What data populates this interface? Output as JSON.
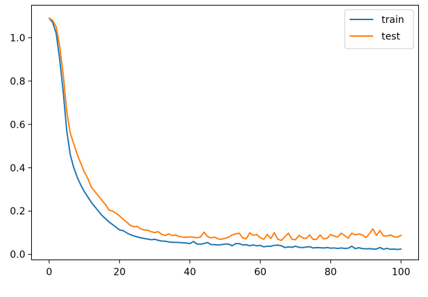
{
  "chart_data": {
    "type": "line",
    "title": "",
    "xlabel": "",
    "ylabel": "",
    "xlim": [
      -5,
      105
    ],
    "ylim": [
      -0.025,
      1.15
    ],
    "xticks": [
      0,
      20,
      40,
      60,
      80,
      100
    ],
    "yticks": [
      0.0,
      0.2,
      0.4,
      0.6,
      0.8,
      1.0
    ],
    "xtick_labels": [
      "0",
      "20",
      "40",
      "60",
      "80",
      "100"
    ],
    "ytick_labels": [
      "0.0",
      "0.2",
      "0.4",
      "0.6",
      "0.8",
      "1.0"
    ],
    "grid": false,
    "legend": {
      "position": "top-right"
    },
    "x": [
      0,
      1,
      2,
      3,
      4,
      5,
      6,
      7,
      8,
      9,
      10,
      11,
      12,
      13,
      14,
      15,
      16,
      17,
      18,
      19,
      20,
      21,
      22,
      23,
      24,
      25,
      26,
      27,
      28,
      29,
      30,
      31,
      32,
      33,
      34,
      35,
      36,
      37,
      38,
      39,
      40,
      41,
      42,
      43,
      44,
      45,
      46,
      47,
      48,
      49,
      50,
      51,
      52,
      53,
      54,
      55,
      56,
      57,
      58,
      59,
      60,
      61,
      62,
      63,
      64,
      65,
      66,
      67,
      68,
      69,
      70,
      71,
      72,
      73,
      74,
      75,
      76,
      77,
      78,
      79,
      80,
      81,
      82,
      83,
      84,
      85,
      86,
      87,
      88,
      89,
      90,
      91,
      92,
      93,
      94,
      95,
      96,
      97,
      98,
      99,
      100
    ],
    "series": [
      {
        "name": "train",
        "color": "#1f77b4",
        "values": [
          1.09,
          1.07,
          1.02,
          0.9,
          0.75,
          0.57,
          0.46,
          0.4,
          0.355,
          0.32,
          0.29,
          0.265,
          0.24,
          0.22,
          0.2,
          0.18,
          0.165,
          0.15,
          0.138,
          0.126,
          0.113,
          0.11,
          0.1,
          0.092,
          0.086,
          0.081,
          0.077,
          0.074,
          0.071,
          0.068,
          0.07,
          0.065,
          0.062,
          0.061,
          0.058,
          0.056,
          0.056,
          0.055,
          0.054,
          0.053,
          0.05,
          0.06,
          0.048,
          0.048,
          0.05,
          0.055,
          0.046,
          0.045,
          0.044,
          0.045,
          0.048,
          0.048,
          0.04,
          0.05,
          0.05,
          0.044,
          0.045,
          0.04,
          0.044,
          0.04,
          0.042,
          0.035,
          0.038,
          0.038,
          0.042,
          0.043,
          0.04,
          0.032,
          0.035,
          0.033,
          0.038,
          0.033,
          0.032,
          0.034,
          0.036,
          0.03,
          0.032,
          0.031,
          0.03,
          0.032,
          0.029,
          0.03,
          0.028,
          0.03,
          0.028,
          0.029,
          0.038,
          0.027,
          0.031,
          0.027,
          0.026,
          0.027,
          0.025,
          0.025,
          0.032,
          0.024,
          0.028,
          0.024,
          0.025,
          0.023,
          0.025
        ]
      },
      {
        "name": "test",
        "color": "#ff7f0e",
        "values": [
          1.09,
          1.08,
          1.05,
          0.96,
          0.83,
          0.66,
          0.56,
          0.51,
          0.46,
          0.42,
          0.38,
          0.35,
          0.31,
          0.29,
          0.27,
          0.25,
          0.23,
          0.205,
          0.2,
          0.19,
          0.178,
          0.163,
          0.15,
          0.135,
          0.128,
          0.13,
          0.118,
          0.113,
          0.112,
          0.105,
          0.101,
          0.105,
          0.092,
          0.088,
          0.095,
          0.087,
          0.09,
          0.083,
          0.08,
          0.079,
          0.081,
          0.08,
          0.077,
          0.08,
          0.103,
          0.083,
          0.077,
          0.08,
          0.072,
          0.07,
          0.075,
          0.08,
          0.09,
          0.095,
          0.098,
          0.077,
          0.072,
          0.1,
          0.088,
          0.092,
          0.077,
          0.07,
          0.092,
          0.074,
          0.1,
          0.07,
          0.065,
          0.082,
          0.098,
          0.07,
          0.068,
          0.088,
          0.077,
          0.073,
          0.09,
          0.07,
          0.07,
          0.09,
          0.072,
          0.075,
          0.092,
          0.085,
          0.08,
          0.098,
          0.087,
          0.075,
          0.098,
          0.09,
          0.095,
          0.09,
          0.078,
          0.095,
          0.118,
          0.088,
          0.11,
          0.085,
          0.085,
          0.09,
          0.082,
          0.08,
          0.088
        ]
      }
    ]
  }
}
